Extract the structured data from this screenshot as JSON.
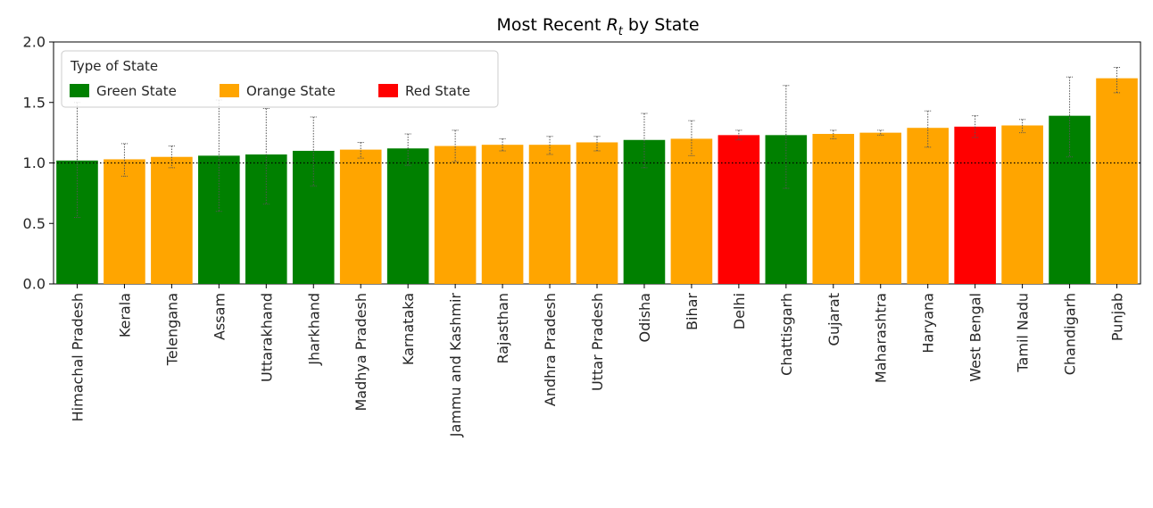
{
  "chart_data": {
    "type": "bar",
    "title": "Most Recent",
    "title_symbol": "R",
    "title_subscript": "t",
    "title_suffix": "by State",
    "xlabel": "",
    "ylabel": "",
    "ylim": [
      0,
      2.0
    ],
    "yticks": [
      "0.0",
      "0.5",
      "1.0",
      "1.5",
      "2.0"
    ],
    "reference_line": 1.0,
    "grid": false,
    "legend": {
      "title": "Type of State",
      "placement": "upper-left",
      "entries": [
        {
          "label": "Green State",
          "color": "#008000"
        },
        {
          "label": "Orange State",
          "color": "#FFA500"
        },
        {
          "label": "Red State",
          "color": "#FF0000"
        }
      ]
    },
    "colors": {
      "Green": "#008000",
      "Orange": "#FFA500",
      "Red": "#FF0000"
    },
    "bars": [
      {
        "category": "Himachal Pradesh",
        "value": 1.02,
        "low": 0.55,
        "high": 1.5,
        "state_type": "Green"
      },
      {
        "category": "Kerala",
        "value": 1.03,
        "low": 0.89,
        "high": 1.16,
        "state_type": "Orange"
      },
      {
        "category": "Telengana",
        "value": 1.05,
        "low": 0.96,
        "high": 1.14,
        "state_type": "Orange"
      },
      {
        "category": "Assam",
        "value": 1.06,
        "low": 0.6,
        "high": 1.52,
        "state_type": "Green"
      },
      {
        "category": "Uttarakhand",
        "value": 1.07,
        "low": 0.66,
        "high": 1.45,
        "state_type": "Green"
      },
      {
        "category": "Jharkhand",
        "value": 1.1,
        "low": 0.81,
        "high": 1.38,
        "state_type": "Green"
      },
      {
        "category": "Madhya Pradesh",
        "value": 1.11,
        "low": 1.04,
        "high": 1.17,
        "state_type": "Orange"
      },
      {
        "category": "Karnataka",
        "value": 1.12,
        "low": 0.98,
        "high": 1.24,
        "state_type": "Green"
      },
      {
        "category": "Jammu and Kashmir",
        "value": 1.14,
        "low": 1.01,
        "high": 1.27,
        "state_type": "Orange"
      },
      {
        "category": "Rajasthan",
        "value": 1.15,
        "low": 1.1,
        "high": 1.2,
        "state_type": "Orange"
      },
      {
        "category": "Andhra Pradesh",
        "value": 1.15,
        "low": 1.07,
        "high": 1.22,
        "state_type": "Orange"
      },
      {
        "category": "Uttar Pradesh",
        "value": 1.17,
        "low": 1.1,
        "high": 1.22,
        "state_type": "Orange"
      },
      {
        "category": "Odisha",
        "value": 1.19,
        "low": 0.96,
        "high": 1.41,
        "state_type": "Green"
      },
      {
        "category": "Bihar",
        "value": 1.2,
        "low": 1.06,
        "high": 1.35,
        "state_type": "Orange"
      },
      {
        "category": "Delhi",
        "value": 1.23,
        "low": 1.19,
        "high": 1.27,
        "state_type": "Red"
      },
      {
        "category": "Chattisgarh",
        "value": 1.23,
        "low": 0.79,
        "high": 1.64,
        "state_type": "Green"
      },
      {
        "category": "Gujarat",
        "value": 1.24,
        "low": 1.2,
        "high": 1.27,
        "state_type": "Orange"
      },
      {
        "category": "Maharashtra",
        "value": 1.25,
        "low": 1.23,
        "high": 1.27,
        "state_type": "Orange"
      },
      {
        "category": "Haryana",
        "value": 1.29,
        "low": 1.13,
        "high": 1.43,
        "state_type": "Orange"
      },
      {
        "category": "West Bengal",
        "value": 1.3,
        "low": 1.21,
        "high": 1.39,
        "state_type": "Red"
      },
      {
        "category": "Tamil Nadu",
        "value": 1.31,
        "low": 1.25,
        "high": 1.36,
        "state_type": "Orange"
      },
      {
        "category": "Chandigarh",
        "value": 1.39,
        "low": 1.05,
        "high": 1.71,
        "state_type": "Green"
      },
      {
        "category": "Punjab",
        "value": 1.7,
        "low": 1.58,
        "high": 1.79,
        "state_type": "Orange"
      }
    ]
  }
}
